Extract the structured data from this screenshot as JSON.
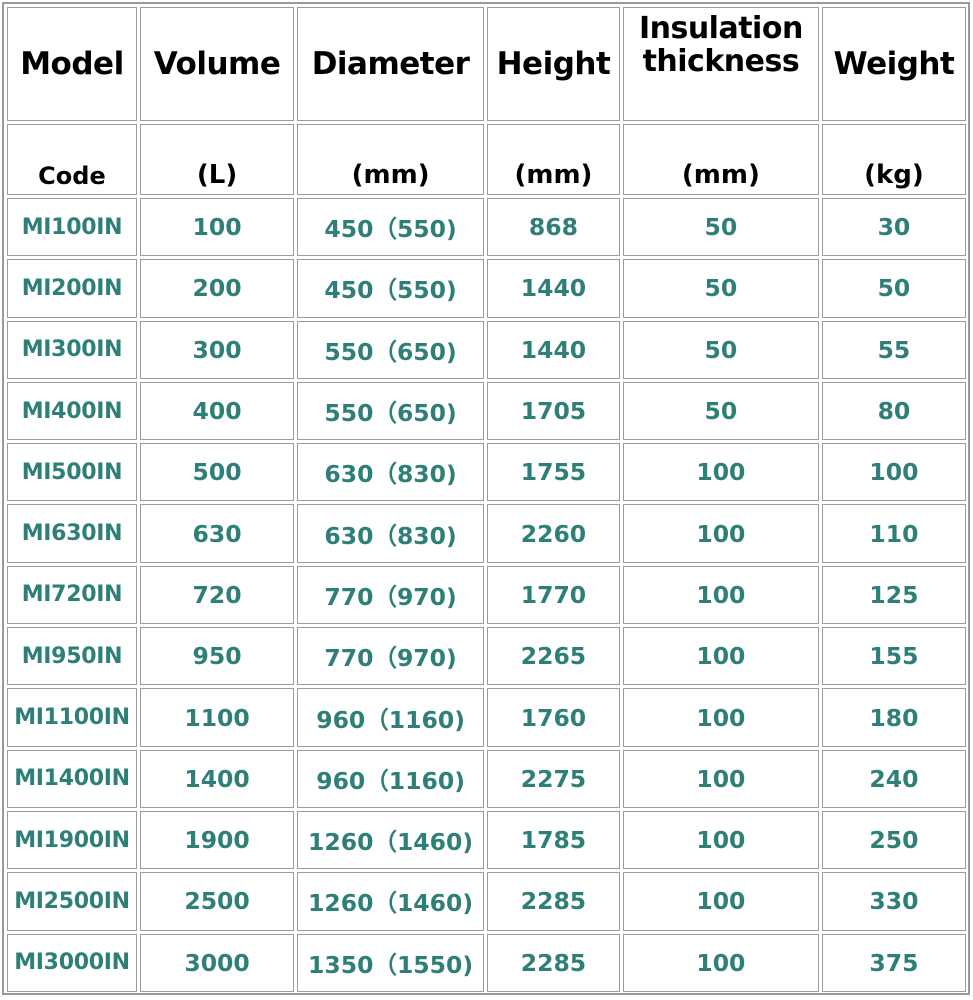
{
  "headers": {
    "model": "Model",
    "volume": "Volume",
    "diameter": "Diameter",
    "height": "Height",
    "insulation": "Insulation thickness",
    "weight": "Weight"
  },
  "units": {
    "model": "Code",
    "volume": "(L)",
    "diameter": "(mm)",
    "height": "(mm)",
    "insulation": "(mm)",
    "weight": "(kg)"
  },
  "rows": [
    {
      "model": "MI100IN",
      "volume": "100",
      "diameter": "450（550)",
      "height": "868",
      "insulation": "50",
      "weight": "30"
    },
    {
      "model": "MI200IN",
      "volume": "200",
      "diameter": "450（550)",
      "height": "1440",
      "insulation": "50",
      "weight": "50"
    },
    {
      "model": "MI300IN",
      "volume": "300",
      "diameter": "550（650)",
      "height": "1440",
      "insulation": "50",
      "weight": "55"
    },
    {
      "model": "MI400IN",
      "volume": "400",
      "diameter": "550（650)",
      "height": "1705",
      "insulation": "50",
      "weight": "80"
    },
    {
      "model": "MI500IN",
      "volume": "500",
      "diameter": "630（830)",
      "height": "1755",
      "insulation": "100",
      "weight": "100"
    },
    {
      "model": "MI630IN",
      "volume": "630",
      "diameter": "630（830)",
      "height": "2260",
      "insulation": "100",
      "weight": "110"
    },
    {
      "model": "MI720IN",
      "volume": "720",
      "diameter": "770（970)",
      "height": "1770",
      "insulation": "100",
      "weight": "125"
    },
    {
      "model": "MI950IN",
      "volume": "950",
      "diameter": "770（970)",
      "height": "2265",
      "insulation": "100",
      "weight": "155"
    },
    {
      "model": "MI1100IN",
      "volume": "1100",
      "diameter": "960（1160)",
      "height": "1760",
      "insulation": "100",
      "weight": "180"
    },
    {
      "model": "MI1400IN",
      "volume": "1400",
      "diameter": "960（1160)",
      "height": "2275",
      "insulation": "100",
      "weight": "240"
    },
    {
      "model": "MI1900IN",
      "volume": "1900",
      "diameter": "1260（1460)",
      "height": "1785",
      "insulation": "100",
      "weight": "250"
    },
    {
      "model": "MI2500IN",
      "volume": "2500",
      "diameter": "1260（1460)",
      "height": "2285",
      "insulation": "100",
      "weight": "330"
    },
    {
      "model": "MI3000IN",
      "volume": "3000",
      "diameter": "1350（1550)",
      "height": "2285",
      "insulation": "100",
      "weight": "375"
    }
  ],
  "colors": {
    "header_text": "#000000",
    "data_text": "#2f7f79",
    "border": "#9c9c9c"
  }
}
